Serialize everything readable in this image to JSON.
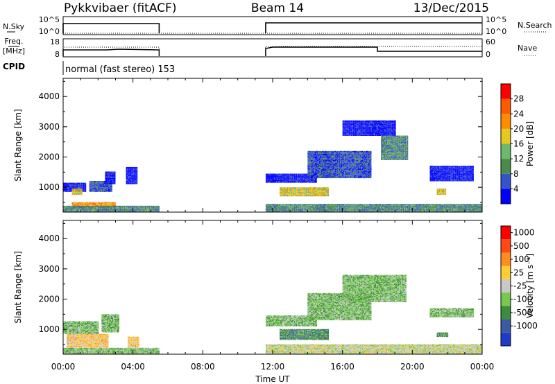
{
  "header": {
    "title": "Pykkvibaer (fitACF)",
    "beam": "Beam 14",
    "date": "13/Dec/2015"
  },
  "nsky_panel": {
    "label": "N.Sky",
    "ticks": [
      "10^5",
      "10^0"
    ],
    "right_label": "N.Search",
    "right_ticks": [
      "10^5",
      "10^0"
    ]
  },
  "freq_panel": {
    "label_line1": "Freq.",
    "label_line2": "[MHz]",
    "ticks": [
      "18",
      "8"
    ],
    "right_label": "Nave",
    "right_ticks": [
      "60",
      "0"
    ]
  },
  "cpid": {
    "label": "CPID",
    "value": "normal (fast stereo) 153"
  },
  "time_axis": {
    "label": "Time UT",
    "ticks": [
      "00:00",
      "04:00",
      "08:00",
      "12:00",
      "16:00",
      "20:00",
      "00:00"
    ]
  },
  "chart_data": [
    {
      "type": "heatmap",
      "name": "power",
      "ylabel": "Slant Range [km]",
      "yticks": [
        1000,
        2000,
        3000,
        4000
      ],
      "ylim": [
        180,
        4600
      ],
      "xlim_hours": [
        0,
        24
      ],
      "colorbar": {
        "label": "Power [dB]",
        "ticks": [
          "4",
          "8",
          "12",
          "16",
          "20",
          "24",
          "28"
        ],
        "colors": [
          "#0000ff",
          "#3355c8",
          "#4c8a4c",
          "#6cb86c",
          "#e8c81c",
          "#ff8c00",
          "#ff5a00",
          "#ff0000"
        ]
      },
      "regions": [
        {
          "t0": 0.0,
          "t1": 1.3,
          "r0": 850,
          "r1": 1150,
          "level": 1
        },
        {
          "t0": 0.5,
          "t1": 1.1,
          "r0": 750,
          "r1": 950,
          "level": 5
        },
        {
          "t0": 1.5,
          "t1": 2.8,
          "r0": 850,
          "r1": 1200,
          "level": 2
        },
        {
          "t0": 2.4,
          "t1": 3.0,
          "r0": 1100,
          "r1": 1500,
          "level": 1
        },
        {
          "t0": 3.6,
          "t1": 4.2,
          "r0": 1100,
          "r1": 1650,
          "level": 1
        },
        {
          "t0": 0.5,
          "t1": 3.0,
          "r0": 300,
          "r1": 500,
          "level": 6
        },
        {
          "t0": 0.0,
          "t1": 5.5,
          "r0": 180,
          "r1": 380,
          "level": 3
        },
        {
          "t0": 11.6,
          "t1": 14.5,
          "r0": 1150,
          "r1": 1450,
          "level": 1
        },
        {
          "t0": 12.4,
          "t1": 15.2,
          "r0": 700,
          "r1": 1000,
          "level": 5
        },
        {
          "t0": 14.0,
          "t1": 17.6,
          "r0": 1300,
          "r1": 2200,
          "level": 2
        },
        {
          "t0": 16.0,
          "t1": 19.0,
          "r0": 2700,
          "r1": 3200,
          "level": 1
        },
        {
          "t0": 18.2,
          "t1": 19.7,
          "r0": 1900,
          "r1": 2700,
          "level": 3
        },
        {
          "t0": 21.0,
          "t1": 23.5,
          "r0": 1200,
          "r1": 1700,
          "level": 1
        },
        {
          "t0": 21.4,
          "t1": 21.9,
          "r0": 750,
          "r1": 950,
          "level": 5
        },
        {
          "t0": 11.6,
          "t1": 24.0,
          "r0": 180,
          "r1": 450,
          "level": 3
        }
      ]
    },
    {
      "type": "heatmap",
      "name": "velocity",
      "ylabel": "Slant Range [km]",
      "yticks": [
        1000,
        2000,
        3000,
        4000
      ],
      "ylim": [
        180,
        4600
      ],
      "xlim_hours": [
        0,
        24
      ],
      "colorbar": {
        "label": "Velocity [m s⁻¹]",
        "ticks": [
          "1000",
          "500",
          "100",
          "25",
          "-25",
          "-100",
          "-500",
          "-1000"
        ],
        "colors": [
          "#1e3cc8",
          "#3c5aa0",
          "#3c8c3c",
          "#78c850",
          "#c8c8c8",
          "#ffcc32",
          "#ff8c1e",
          "#ff4a14",
          "#ff0000"
        ]
      },
      "regions": [
        {
          "t0": 0.0,
          "t1": 2.0,
          "r0": 850,
          "r1": 1250,
          "level": 4
        },
        {
          "t0": 0.2,
          "t1": 2.6,
          "r0": 400,
          "r1": 850,
          "level": 6
        },
        {
          "t0": 2.2,
          "t1": 3.2,
          "r0": 900,
          "r1": 1500,
          "level": 4
        },
        {
          "t0": 3.7,
          "t1": 4.3,
          "r0": 400,
          "r1": 750,
          "level": 6
        },
        {
          "t0": 0.0,
          "t1": 5.5,
          "r0": 180,
          "r1": 380,
          "level": 4
        },
        {
          "t0": 11.6,
          "t1": 14.5,
          "r0": 1100,
          "r1": 1450,
          "level": 4
        },
        {
          "t0": 12.4,
          "t1": 15.2,
          "r0": 650,
          "r1": 1000,
          "level": 3
        },
        {
          "t0": 14.0,
          "t1": 17.6,
          "r0": 1300,
          "r1": 2200,
          "level": 4
        },
        {
          "t0": 16.0,
          "t1": 19.6,
          "r0": 1900,
          "r1": 2800,
          "level": 4
        },
        {
          "t0": 21.0,
          "t1": 23.5,
          "r0": 1400,
          "r1": 1700,
          "level": 4
        },
        {
          "t0": 21.4,
          "t1": 22.0,
          "r0": 750,
          "r1": 900,
          "level": 3
        },
        {
          "t0": 11.6,
          "t1": 24.0,
          "r0": 180,
          "r1": 500,
          "level": 5
        }
      ]
    }
  ]
}
